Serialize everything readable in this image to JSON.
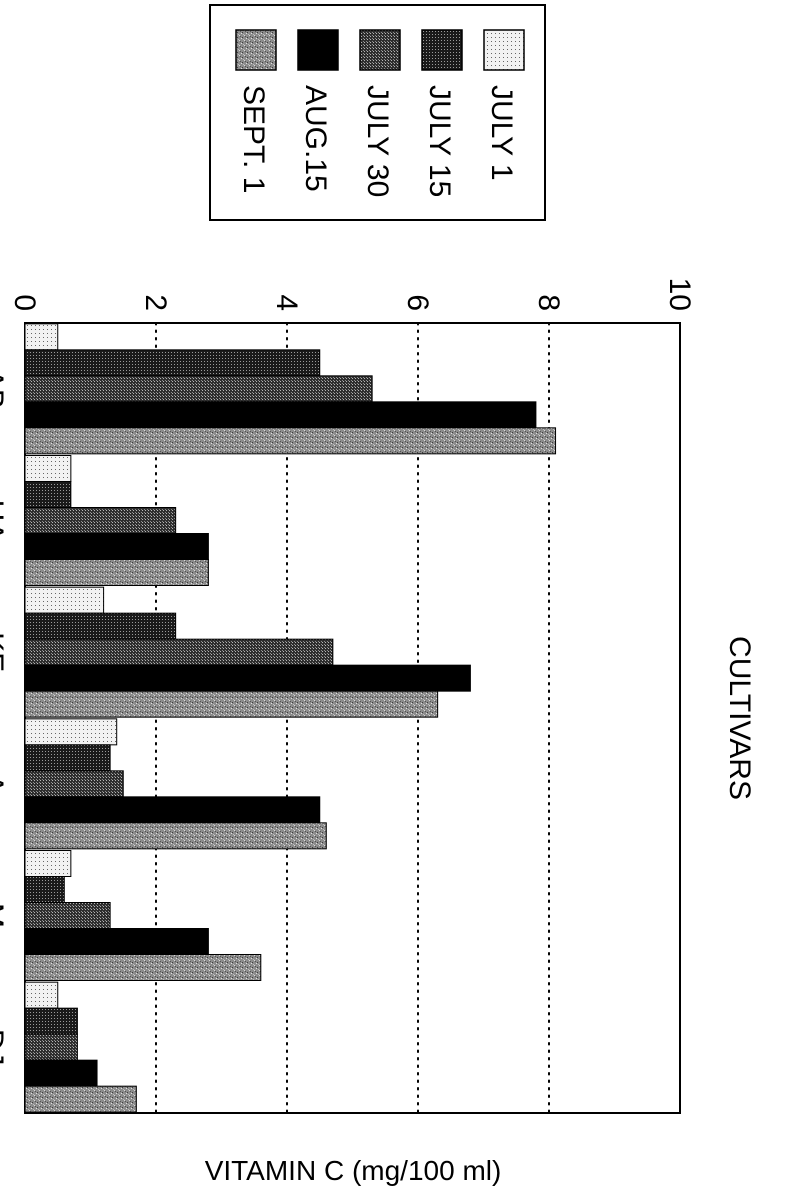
{
  "chart_data": {
    "type": "bar",
    "orientation": "vertical (image rotated 90° clockwise)",
    "xlabel": "CULTIVARS",
    "ylabel": "VITAMIN C (mg/100 ml)",
    "ylim": [
      0,
      10
    ],
    "yticks": [
      "0",
      "2",
      "4",
      "6",
      "8",
      "10"
    ],
    "grid": "dotted horizontal at 2, 4, 6, 8",
    "legend_position": "top-right",
    "categories": [
      "AB",
      "HA",
      "KE",
      "A",
      "M",
      "DJ"
    ],
    "series": [
      {
        "name": "JULY 1",
        "pattern": "light-dots",
        "values": [
          0.5,
          0.7,
          1.2,
          1.4,
          0.7,
          0.5
        ]
      },
      {
        "name": "JULY 15",
        "pattern": "dark-dots",
        "values": [
          4.5,
          0.7,
          2.3,
          1.3,
          0.6,
          0.8
        ]
      },
      {
        "name": "JULY 30",
        "pattern": "medium-dots",
        "values": [
          5.3,
          2.3,
          4.7,
          1.5,
          1.3,
          0.8
        ]
      },
      {
        "name": "AUG.15",
        "pattern": "solid-black",
        "values": [
          7.8,
          2.8,
          6.8,
          4.5,
          2.8,
          1.1
        ]
      },
      {
        "name": "SEPT. 1",
        "pattern": "gray-speckle",
        "values": [
          8.1,
          2.8,
          6.3,
          4.6,
          3.6,
          1.7
        ]
      }
    ]
  }
}
